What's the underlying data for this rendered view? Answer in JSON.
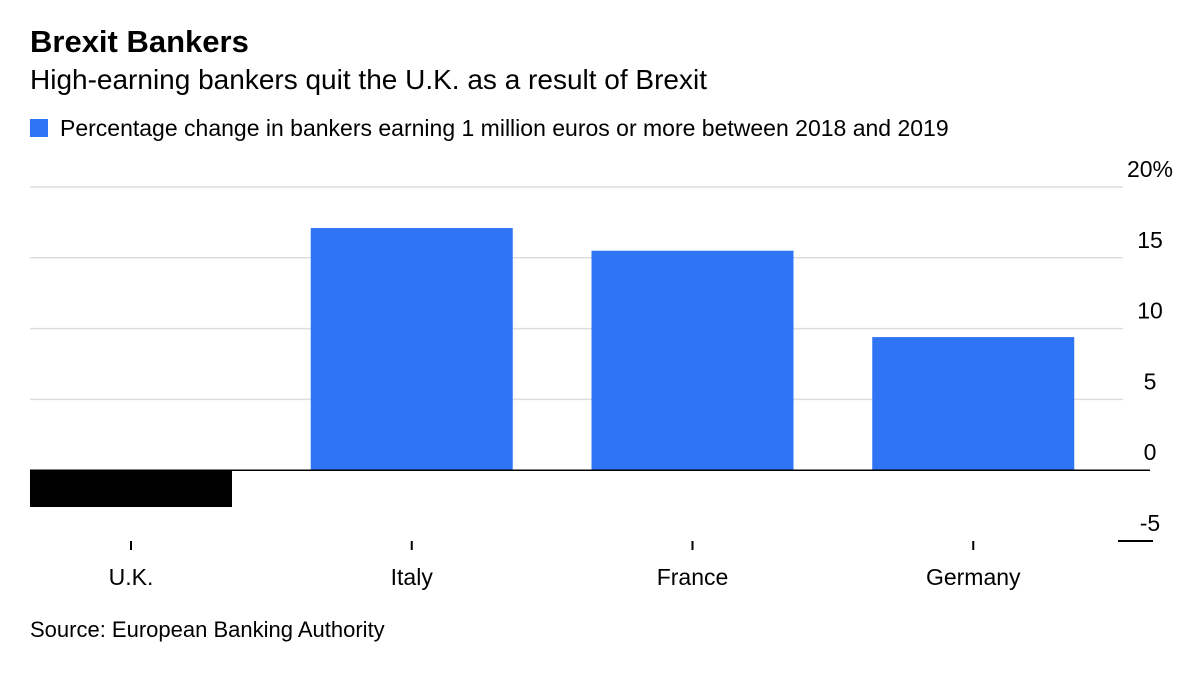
{
  "title": "Brexit Bankers",
  "subtitle": "High-earning bankers quit the U.K. as a result of Brexit",
  "source": "Source: European Banking Authority",
  "colors": {
    "positive": "#2f74f5",
    "negative": "#000000",
    "grid": "#dddddd",
    "axis": "#000000"
  },
  "chart_data": {
    "type": "bar",
    "categories": [
      "U.K.",
      "Italy",
      "France",
      "Germany"
    ],
    "series": [
      {
        "name": "Percentage change in bankers earning 1 million euros or more between 2018 and 2019",
        "values": [
          -2.6,
          17.1,
          15.5,
          9.4
        ]
      }
    ],
    "ylim": [
      -5,
      20
    ],
    "yticks": [
      -5,
      0,
      5,
      10,
      15,
      20
    ],
    "ytick_labels": [
      "-5",
      "0",
      "5",
      "10",
      "15",
      "20%"
    ],
    "y_axis_position": "right",
    "grid": true,
    "legend": "top-left",
    "xlabel": "",
    "ylabel": ""
  }
}
